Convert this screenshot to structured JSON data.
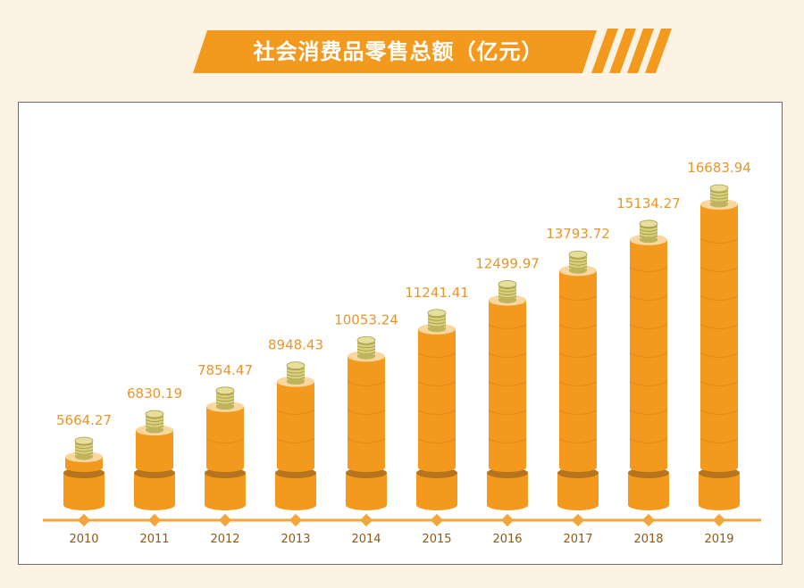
{
  "header": {
    "title": "社会消费品零售总额（亿元）"
  },
  "colors": {
    "background": "#fcf3e4",
    "bar": "#f39a1e",
    "bar_top": "#fbd7a0",
    "axis": "#f3a43a",
    "value_label": "#e9952a",
    "coin": "#d8cf7a"
  },
  "chart_data": {
    "type": "bar",
    "title": "社会消费品零售总额（亿元）",
    "categories": [
      "2010",
      "2011",
      "2012",
      "2013",
      "2014",
      "2015",
      "2016",
      "2017",
      "2018",
      "2019"
    ],
    "values": [
      5664.27,
      6830.19,
      7854.47,
      8948.43,
      10053.24,
      11241.41,
      12499.97,
      13793.72,
      15134.27,
      16683.94
    ],
    "value_labels": [
      "5664.27",
      "6830.19",
      "7854.47",
      "8948.43",
      "10053.24",
      "11241.41",
      "12499.97",
      "13793.72",
      "15134.27",
      "16683.94"
    ],
    "grid": false,
    "legend": "none"
  }
}
